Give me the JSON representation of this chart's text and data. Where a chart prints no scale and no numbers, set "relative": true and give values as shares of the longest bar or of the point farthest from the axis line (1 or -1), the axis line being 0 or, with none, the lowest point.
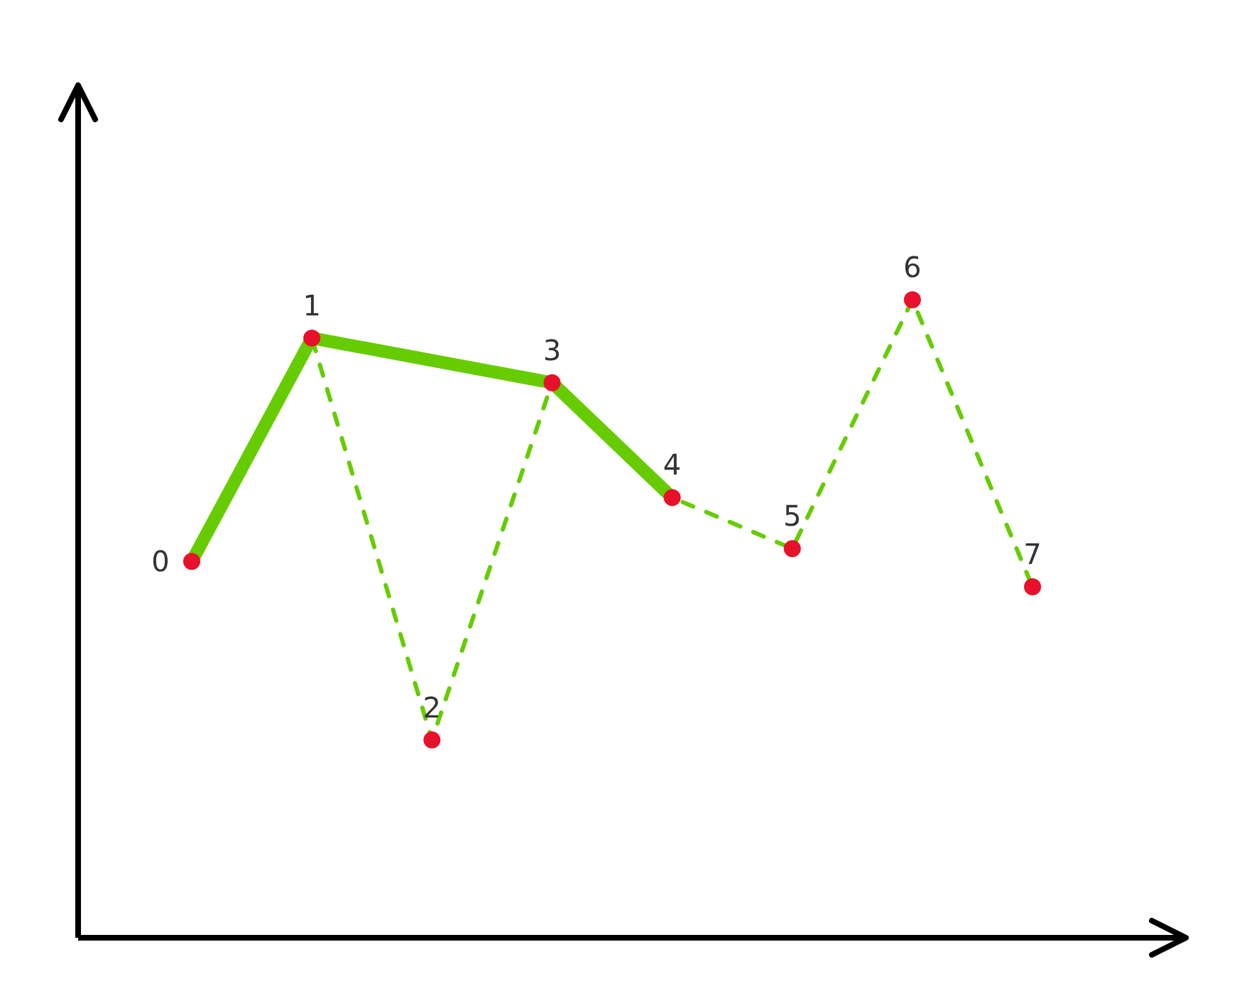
{
  "chart_data": {
    "type": "line",
    "relative": true,
    "categories": [
      null,
      null,
      null,
      null,
      null,
      null,
      null,
      null
    ],
    "series": [
      {
        "color": "#66cc00",
        "line_style": "dashed",
        "marker": "circle",
        "colors": [
          "#e8102a",
          "#e8102a",
          "#e8102a",
          "#e8102a",
          "#e8102a",
          "#e8102a",
          "#e8102a",
          "#e8102a"
        ],
        "values": [
          0.59,
          0.94,
          0.31,
          0.87,
          0.69,
          0.61,
          1,
          0.55
        ]
      },
      {
        "color": "#66cc00",
        "line_style": "solid",
        "values": [
          0.59,
          0.94,
          null,
          0.87,
          0.69,
          null,
          null,
          null
        ]
      }
    ],
    "annotations": [
      "0",
      "1",
      "2",
      "3",
      "4",
      "5",
      "6",
      "7"
    ]
  }
}
